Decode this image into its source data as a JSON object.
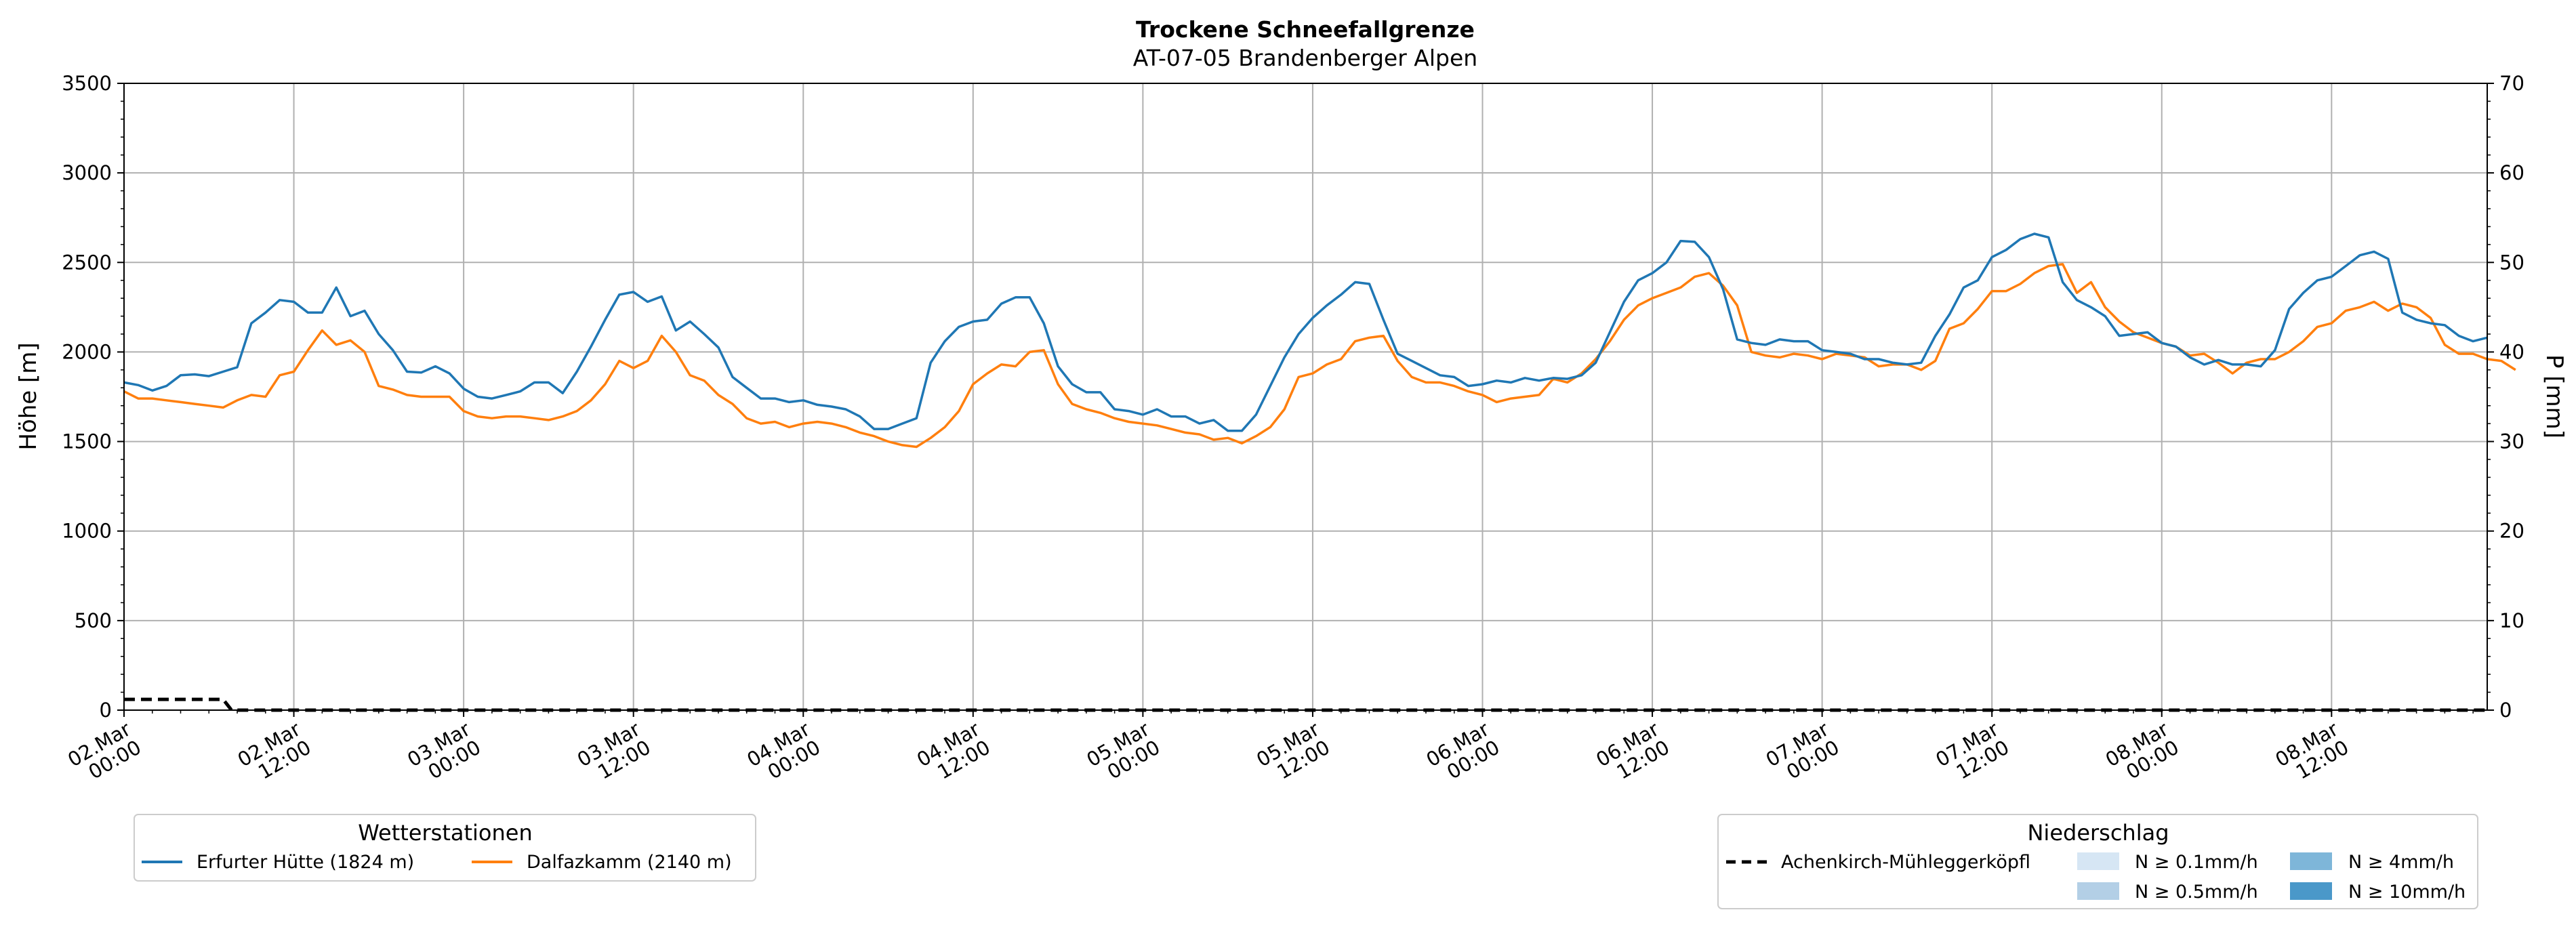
{
  "chart_data": {
    "type": "line",
    "title": "Trockene Schneefallgrenze",
    "subtitle": "AT-07-05 Brandenberger Alpen",
    "ylabel": "Höhe [m]",
    "ylabel_right": "P [mm]",
    "ylim": [
      0,
      3500
    ],
    "ylim_right": [
      0,
      70
    ],
    "yticks": [
      "0",
      "500",
      "1000",
      "1500",
      "2000",
      "2500",
      "3000",
      "3500"
    ],
    "yticks_right": [
      "0",
      "10",
      "20",
      "30",
      "40",
      "50",
      "60",
      "70"
    ],
    "x_start": "02.Mar 00:00",
    "x_step_hours": 1,
    "xlim_hours": [
      0,
      167
    ],
    "x_tick_hours": [
      0,
      12,
      24,
      36,
      48,
      60,
      72,
      84,
      96,
      108,
      120,
      132,
      144,
      156
    ],
    "x_tick_labels": [
      [
        "02.Mar",
        "00:00"
      ],
      [
        "02.Mar",
        "12:00"
      ],
      [
        "03.Mar",
        "00:00"
      ],
      [
        "03.Mar",
        "12:00"
      ],
      [
        "04.Mar",
        "00:00"
      ],
      [
        "04.Mar",
        "12:00"
      ],
      [
        "05.Mar",
        "00:00"
      ],
      [
        "05.Mar",
        "12:00"
      ],
      [
        "06.Mar",
        "00:00"
      ],
      [
        "06.Mar",
        "12:00"
      ],
      [
        "07.Mar",
        "00:00"
      ],
      [
        "07.Mar",
        "12:00"
      ],
      [
        "08.Mar",
        "00:00"
      ],
      [
        "08.Mar",
        "12:00"
      ]
    ],
    "grid": true,
    "series": [
      {
        "name": "Erfurter Hütte (1824 m)",
        "color": "#1f77b4",
        "values": [
          1830,
          1815,
          1785,
          1810,
          1870,
          1875,
          1865,
          1890,
          1915,
          2160,
          2220,
          2290,
          2280,
          2220,
          2220,
          2360,
          2200,
          2230,
          2100,
          2010,
          1890,
          1885,
          1920,
          1880,
          1795,
          1750,
          1740,
          1760,
          1780,
          1830,
          1830,
          1770,
          1890,
          2030,
          2180,
          2320,
          2335,
          2280,
          2310,
          2120,
          2170,
          2100,
          2025,
          1860,
          1800,
          1740,
          1740,
          1720,
          1730,
          1705,
          1695,
          1680,
          1640,
          1570,
          1570,
          1600,
          1630,
          1940,
          2060,
          2140,
          2170,
          2180,
          2270,
          2305,
          2305,
          2160,
          1920,
          1820,
          1775,
          1775,
          1680,
          1670,
          1650,
          1680,
          1640,
          1640,
          1600,
          1620,
          1560,
          1560,
          1650,
          1810,
          1970,
          2100,
          2190,
          2260,
          2320,
          2390,
          2380,
          2180,
          1990,
          1950,
          1910,
          1870,
          1860,
          1810,
          1820,
          1840,
          1830,
          1855,
          1840,
          1855,
          1850,
          1870,
          1940,
          2110,
          2280,
          2400,
          2440,
          2500,
          2620,
          2615,
          2530,
          2350,
          2070,
          2050,
          2040,
          2070,
          2060,
          2060,
          2010,
          2000,
          1990,
          1960,
          1960,
          1940,
          1930,
          1940,
          2090,
          2210,
          2360,
          2400,
          2530,
          2570,
          2630,
          2660,
          2640,
          2390,
          2290,
          2250,
          2200,
          2090,
          2100,
          2110,
          2050,
          2030,
          1970,
          1930,
          1955,
          1930,
          1930,
          1920,
          2010,
          2240,
          2330,
          2400,
          2420,
          2480,
          2540,
          2560,
          2520,
          2220,
          2180,
          2160,
          2150,
          2090,
          2060,
          2080
        ]
      },
      {
        "name": "Dalfazkamm (2140 m)",
        "color": "#ff7f0e",
        "values": [
          1780,
          1740,
          1740,
          1730,
          1720,
          1710,
          1700,
          1690,
          1730,
          1760,
          1750,
          1870,
          1890,
          2010,
          2120,
          2040,
          2065,
          2000,
          1810,
          1790,
          1760,
          1750,
          1750,
          1750,
          1670,
          1640,
          1630,
          1640,
          1640,
          1630,
          1620,
          1640,
          1670,
          1730,
          1820,
          1950,
          1910,
          1950,
          2090,
          2000,
          1870,
          1840,
          1760,
          1710,
          1630,
          1600,
          1610,
          1580,
          1600,
          1610,
          1600,
          1580,
          1550,
          1530,
          1500,
          1480,
          1470,
          1520,
          1580,
          1670,
          1820,
          1880,
          1930,
          1920,
          2000,
          2010,
          1820,
          1710,
          1680,
          1660,
          1630,
          1610,
          1600,
          1590,
          1570,
          1550,
          1540,
          1510,
          1520,
          1490,
          1530,
          1580,
          1680,
          1860,
          1880,
          1930,
          1960,
          2060,
          2080,
          2090,
          1950,
          1860,
          1830,
          1830,
          1810,
          1780,
          1760,
          1720,
          1740,
          1750,
          1760,
          1850,
          1830,
          1880,
          1960,
          2060,
          2180,
          2260,
          2300,
          2330,
          2360,
          2420,
          2440,
          2370,
          2260,
          2000,
          1980,
          1970,
          1990,
          1980,
          1960,
          1990,
          1980,
          1970,
          1920,
          1930,
          1930,
          1900,
          1950,
          2130,
          2160,
          2240,
          2340,
          2340,
          2380,
          2440,
          2480,
          2490,
          2330,
          2390,
          2250,
          2170,
          2110,
          2080,
          2050,
          2030,
          1980,
          1990,
          1940,
          1880,
          1940,
          1960,
          1960,
          2000,
          2060,
          2140,
          2160,
          2230,
          2250,
          2280,
          2230,
          2270,
          2250,
          2190,
          2040,
          1990,
          1990,
          1960,
          1950,
          1900
        ]
      }
    ],
    "precip_series": {
      "name": "Achenkirch-Mühleggerköpfl",
      "color": "#000000",
      "axis": "right",
      "points": [
        [
          0,
          1.2
        ],
        [
          7,
          1.2
        ],
        [
          7.6,
          0
        ],
        [
          167,
          0
        ]
      ]
    },
    "legend_left": {
      "title": "Wetterstationen",
      "position": "below-left"
    },
    "legend_right": {
      "title": "Niederschlag",
      "position": "below-right",
      "line_label": "Achenkirch-Mühleggerköpfl",
      "swatches": [
        {
          "label": "N ≥ 0.1mm/h",
          "color": "#d6e6f4"
        },
        {
          "label": "N ≥ 0.5mm/h",
          "color": "#b3cfe6"
        },
        {
          "label": "N ≥ 4mm/h",
          "color": "#7eb6d9"
        },
        {
          "label": "N ≥ 10mm/h",
          "color": "#4a98c9"
        }
      ]
    }
  }
}
